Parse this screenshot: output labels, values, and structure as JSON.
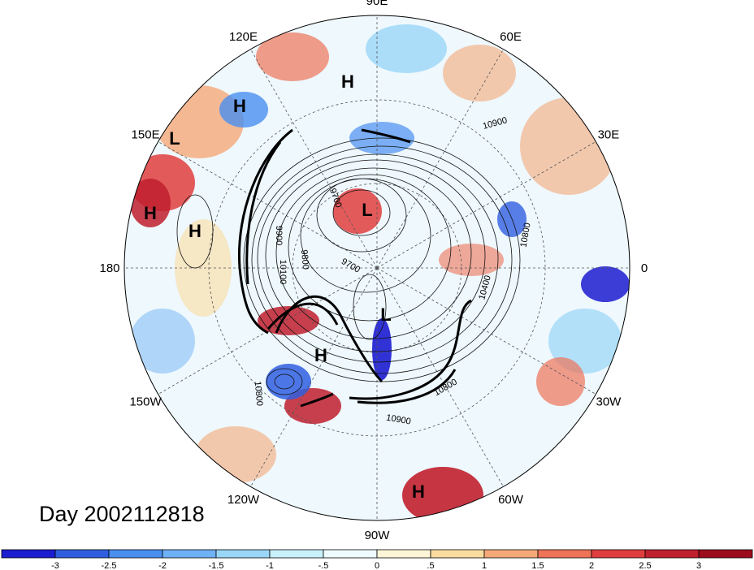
{
  "title": "Day 2002112818",
  "longitude_labels": [
    {
      "label": "90E",
      "angle_deg": -90
    },
    {
      "label": "60E",
      "angle_deg": -60
    },
    {
      "label": "30E",
      "angle_deg": -30
    },
    {
      "label": "0",
      "angle_deg": 0
    },
    {
      "label": "30W",
      "angle_deg": 30
    },
    {
      "label": "60W",
      "angle_deg": 60
    },
    {
      "label": "90W",
      "angle_deg": 90
    },
    {
      "label": "120W",
      "angle_deg": 120
    },
    {
      "label": "150W",
      "angle_deg": 150
    },
    {
      "label": "180",
      "angle_deg": 180
    },
    {
      "label": "150E",
      "angle_deg": 210
    },
    {
      "label": "120E",
      "angle_deg": 240
    }
  ],
  "pressure_centers": [
    {
      "label": "H",
      "type": "high"
    },
    {
      "label": "H",
      "type": "high"
    },
    {
      "label": "L",
      "type": "low"
    },
    {
      "label": "H",
      "type": "high"
    },
    {
      "label": "H",
      "type": "high"
    },
    {
      "label": "L",
      "type": "low"
    },
    {
      "label": "L",
      "type": "low"
    },
    {
      "label": "H",
      "type": "high"
    },
    {
      "label": "H",
      "type": "high"
    }
  ],
  "contour_labels": [
    "10900",
    "10800",
    "9900",
    "10100",
    "9800",
    "9700",
    "9700",
    "10400",
    "10800",
    "10900",
    "10800"
  ],
  "colorbar": {
    "ticks": [
      "-3",
      "-2.5",
      "-2",
      "-1.5",
      "-1",
      "-.5",
      "0",
      ".5",
      "1",
      "1.5",
      "2",
      "2.5",
      "3"
    ],
    "colors": [
      "#1c1cd0",
      "#2f5fe0",
      "#4a8ef0",
      "#6fb1f5",
      "#9ad6f7",
      "#c9f1fb",
      "#eefcff",
      "#fdf6d8",
      "#fbdca0",
      "#f5a878",
      "#ee7358",
      "#e03e3e",
      "#c01f2e",
      "#9c0c1f"
    ]
  }
}
